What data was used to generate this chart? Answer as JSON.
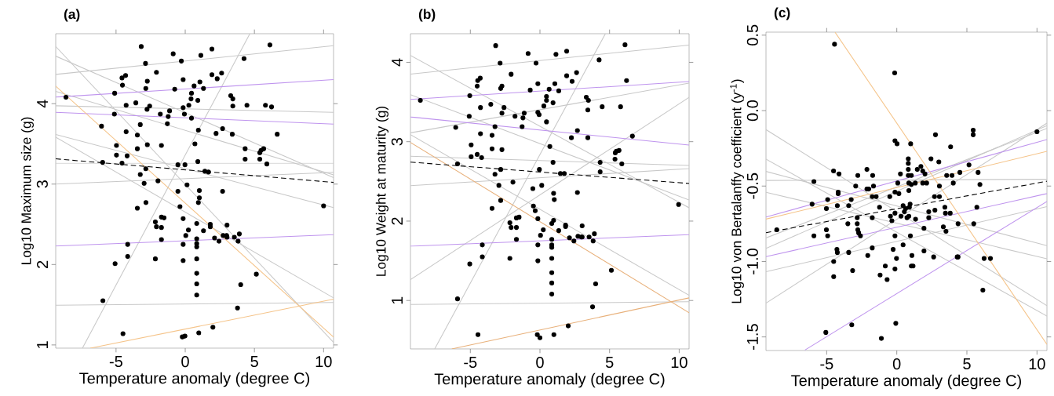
{
  "chart_data": [
    {
      "type": "scatter",
      "title": "(a)",
      "xlabel": "Temperature anomaly (degree C)",
      "ylabel": "Log10 Maximum size (g)",
      "xlim": [
        -9.36,
        10.72
      ],
      "ylim": [
        0.96,
        4.87
      ],
      "xticks": [
        -5,
        0,
        5,
        10
      ],
      "yticks": [
        1,
        2,
        3,
        4
      ],
      "grid": false,
      "series": [
        {
          "color": "#000000",
          "marker": "circle",
          "x": [
            -8.62,
            -6.05,
            -5.97,
            -5.95,
            -5.1,
            -5.12,
            -4.97,
            -4.97,
            -5.07,
            -4.57,
            -4.54,
            -4.31,
            -4.27,
            -4.27,
            -4.2,
            -4.57,
            -4.16,
            -4.16,
            -4.5,
            -3.57,
            -3.46,
            -3.46,
            -3.46,
            -3.18,
            -3.25,
            -3.25,
            -2.97,
            -2.87,
            -2.85,
            -2.74,
            -2.76,
            -2.57,
            -2.74,
            -2.85,
            -2.84,
            -2.08,
            -2.16,
            -2.08,
            -2.16,
            -1.97,
            -1.8,
            -1.72,
            -1.72,
            -1.72,
            -1.72,
            -1.53,
            -1.23,
            -1.13,
            -1.29,
            -0.87,
            -0.76,
            -0.53,
            -0.53,
            -0.38,
            -0.28,
            -0.15,
            -0.15,
            -0.15,
            -0.15,
            -0.15,
            -0.21,
            -0.06,
            -0.02,
            0.04,
            -0.02,
            0.13,
            0.23,
            0.26,
            0.42,
            0.45,
            0.45,
            0.64,
            0.7,
            0.83,
            0.83,
            0.83,
            0.83,
            0.83,
            0.83,
            0.83,
            0.83,
            0.91,
            0.91,
            0.95,
            0.95,
            1.02,
            1.02,
            1.06,
            0.98,
            1.13,
            1.32,
            1.32,
            1.42,
            1.68,
            1.81,
            1.81,
            1.93,
            1.93,
            2.0,
            2.12,
            2.23,
            2.31,
            2.44,
            2.63,
            2.7,
            2.7,
            2.74,
            2.99,
            3.02,
            3.02,
            3.29,
            3.44,
            3.44,
            3.4,
            3.55,
            3.78,
            3.82,
            3.91,
            4.01,
            4.25,
            4.33,
            4.33,
            4.46,
            5.14,
            5.39,
            5.39,
            5.48,
            5.67,
            5.8,
            5.9,
            6.12,
            6.24,
            6.65,
            10.0
          ],
          "values": [
            4.08,
            3.72,
            3.27,
            1.55,
            4.13,
            3.87,
            3.48,
            3.36,
            2.01,
            4.32,
            4.23,
            4.35,
            3.98,
            3.65,
            3.35,
            3.26,
            2.25,
            2.1,
            1.14,
            4.01,
            3.61,
            3.44,
            2.7,
            4.71,
            3.74,
            3.12,
            3.01,
            4.5,
            4.19,
            4.28,
            3.93,
            3.97,
            3.49,
            3.19,
            2.77,
            4.39,
            2.53,
            2.47,
            2.07,
            3.04,
            3.87,
            3.48,
            2.59,
            2.46,
            2.31,
            2.58,
            3.84,
            3.91,
            3.75,
            4.62,
            4.18,
            3.24,
            2.91,
            2.72,
            4.53,
            4.3,
            3.95,
            2.57,
            2.25,
            2.05,
            1.1,
            3.87,
            3.24,
            2.36,
            1.11,
            2.99,
            2.43,
            3.98,
            4.06,
            4.13,
            3.82,
            4.22,
            3.5,
            2.51,
            2.32,
            2.26,
            2.22,
            2.07,
            1.89,
            1.76,
            1.62,
            4.04,
            3.28,
            3.67,
            2.77,
            2.92,
            2.83,
            4.27,
            1.15,
            4.6,
            4.19,
            2.42,
            3.16,
            3.15,
            2.5,
            2.47,
            4.68,
            4.36,
            1.22,
            2.33,
            3.63,
            4.31,
            2.29,
            4.38,
            3.69,
            2.91,
            2.36,
            2.36,
            2.49,
            2.34,
            4.1,
            4.06,
            3.97,
            3.62,
            2.34,
            1.46,
            2.29,
            2.38,
            1.75,
            4.56,
            3.44,
            3.31,
            3.98,
            1.88,
            3.31,
            3.39,
            3.42,
            3.44,
            3.98,
            3.25,
            4.73,
            3.96,
            3.62,
            2.73
          ]
        },
        {
          "type": "line",
          "color": "#c8c8c8",
          "x": [
            -9.36,
            10.72
          ],
          "values": [
            4.364,
            4.721
          ]
        },
        {
          "type": "line",
          "color": "#c8c8c8",
          "x": [
            -9.36,
            10.72
          ],
          "values": [
            3.974,
            3.893
          ]
        },
        {
          "type": "line",
          "color": "#c8c8c8",
          "x": [
            -7.43,
            4.67
          ],
          "values": [
            0.96,
            4.87
          ]
        },
        {
          "type": "line",
          "color": "#c8c8c8",
          "x": [
            -9.36,
            10.72
          ],
          "values": [
            4.711,
            1.032
          ]
        },
        {
          "type": "line",
          "color": "#c8c8c8",
          "x": [
            -9.36,
            10.72
          ],
          "values": [
            4.591,
            3.081
          ]
        },
        {
          "type": "line",
          "color": "#c8c8c8",
          "x": [
            -9.36,
            10.72
          ],
          "values": [
            4.153,
            3.114
          ]
        },
        {
          "type": "line",
          "color": "#c8c8c8",
          "x": [
            -9.36,
            10.72
          ],
          "values": [
            3.617,
            2.707
          ]
        },
        {
          "type": "line",
          "color": "#c8c8c8",
          "x": [
            -9.36,
            10.72
          ],
          "values": [
            3.584,
            1.585
          ]
        },
        {
          "type": "line",
          "color": "#c8c8c8",
          "x": [
            -9.36,
            10.72
          ],
          "values": [
            1.494,
            1.527
          ]
        },
        {
          "type": "line",
          "color": "#c8c8c8",
          "x": [
            -9.36,
            10.72
          ],
          "values": [
            3.0,
            3.146
          ]
        },
        {
          "type": "line",
          "color": "#c8c8c8",
          "x": [
            -9.36,
            10.72
          ],
          "values": [
            3.259,
            3.259
          ]
        },
        {
          "type": "line",
          "color": "#bf94ee",
          "x": [
            -9.36,
            10.72
          ],
          "values": [
            4.081,
            4.299
          ]
        },
        {
          "type": "line",
          "color": "#bf94ee",
          "x": [
            -9.36,
            10.72
          ],
          "values": [
            3.893,
            3.747
          ]
        },
        {
          "type": "line",
          "color": "#bf94ee",
          "x": [
            -9.36,
            10.72
          ],
          "values": [
            2.229,
            2.372
          ]
        },
        {
          "type": "line",
          "color": "#f5c48a",
          "x": [
            -9.36,
            10.72
          ],
          "values": [
            4.218,
            1.098
          ]
        },
        {
          "type": "line",
          "color": "#f5c48a",
          "x": [
            -6.86,
            10.72
          ],
          "values": [
            0.96,
            1.569
          ]
        },
        {
          "type": "line",
          "color": "#000000",
          "line_style": "dashed",
          "x": [
            -9.36,
            10.72
          ],
          "values": [
            3.314,
            3.021
          ]
        }
      ]
    },
    {
      "type": "scatter",
      "title": "(b)",
      "xlabel": "Temperature anomaly (degree C)",
      "ylabel": "Log10 Weight at maturity (g)",
      "xlim": [
        -9.3,
        10.71
      ],
      "ylim": [
        0.39,
        4.36
      ],
      "xticks": [
        -5,
        0,
        5,
        10
      ],
      "yticks": [
        1,
        2,
        3,
        4
      ],
      "grid": false,
      "series": [
        {
          "color": "#000000",
          "marker": "circle",
          "x": [
            -8.59,
            -6.05,
            -5.92,
            -5.92,
            -5.04,
            -5.08,
            -4.94,
            -4.94,
            -5.04,
            -4.51,
            -4.47,
            -4.29,
            -4.27,
            -4.27,
            -4.19,
            -4.51,
            -4.14,
            -4.14,
            -4.45,
            -3.53,
            -3.44,
            -3.44,
            -3.44,
            -3.18,
            -3.23,
            -3.23,
            -2.95,
            -2.86,
            -2.82,
            -2.73,
            -2.73,
            -2.58,
            -2.73,
            -2.82,
            -2.82,
            -2.07,
            -2.16,
            -2.07,
            -2.16,
            -1.94,
            -1.79,
            -1.69,
            -1.69,
            -1.69,
            -1.5,
            -1.22,
            -1.13,
            -1.28,
            -0.85,
            -0.7,
            -0.51,
            -0.47,
            -0.34,
            -0.28,
            -0.15,
            -0.15,
            -0.15,
            -0.15,
            -0.15,
            -0.19,
            -0.06,
            -0.04,
            0.04,
            0.0,
            0.13,
            0.24,
            0.28,
            0.47,
            0.47,
            0.47,
            0.66,
            0.71,
            0.85,
            0.85,
            0.85,
            0.85,
            0.85,
            0.85,
            0.85,
            0.85,
            0.94,
            0.94,
            0.98,
            0.98,
            1.03,
            1.07,
            1.0,
            1.15,
            1.35,
            1.35,
            1.47,
            1.75,
            1.84,
            1.84,
            1.92,
            1.92,
            2.03,
            2.12,
            2.26,
            2.31,
            2.44,
            2.63,
            2.69,
            2.69,
            2.73,
            2.97,
            3.03,
            3.03,
            3.33,
            3.48,
            3.44,
            3.44,
            3.53,
            3.78,
            3.82,
            3.91,
            4.0,
            4.25,
            4.32,
            4.32,
            4.47,
            5.13,
            5.39,
            5.41,
            5.49,
            5.68,
            5.79,
            5.88,
            6.11,
            6.22,
            6.64,
            9.96
          ],
          "values": [
            3.52,
            3.18,
            2.72,
            1.02,
            3.58,
            3.32,
            2.96,
            2.81,
            1.46,
            3.7,
            3.77,
            3.8,
            3.43,
            3.1,
            2.8,
            2.84,
            1.7,
            1.55,
            0.57,
            3.47,
            3.08,
            2.91,
            2.16,
            4.21,
            3.19,
            2.59,
            2.45,
            3.99,
            3.67,
            3.7,
            3.36,
            3.43,
            2.9,
            2.65,
            2.26,
            3.85,
            1.98,
            1.92,
            1.53,
            2.49,
            3.32,
            2.04,
            1.92,
            1.77,
            2.05,
            3.3,
            3.36,
            3.19,
            4.11,
            3.65,
            2.41,
            2.19,
            2.13,
            3.99,
            3.73,
            3.37,
            2.03,
            1.7,
            1.5,
            0.57,
            3.34,
            2.65,
            1.82,
            0.53,
            2.45,
            1.89,
            3.45,
            3.52,
            3.57,
            3.25,
            3.66,
            2.94,
            1.97,
            1.77,
            1.7,
            1.67,
            1.53,
            1.35,
            1.22,
            1.08,
            3.49,
            2.74,
            2.01,
            2.35,
            2.27,
            3.73,
            0.57,
            4.1,
            3.64,
            1.88,
            2.6,
            2.6,
            1.95,
            1.93,
            4.14,
            3.83,
            0.68,
            1.79,
            3.05,
            3.76,
            1.75,
            3.87,
            3.14,
            2.36,
            1.81,
            1.8,
            1.94,
            1.8,
            3.56,
            3.52,
            3.4,
            3.05,
            1.8,
            0.92,
            1.75,
            1.84,
            1.21,
            4.03,
            2.74,
            2.62,
            3.44,
            1.38,
            2.78,
            2.86,
            2.88,
            2.89,
            3.44,
            2.72,
            4.22,
            3.77,
            3.07,
            2.21
          ]
        },
        {
          "type": "line",
          "color": "#c8c8c8",
          "x": [
            -9.3,
            10.71
          ],
          "values": [
            3.852,
            4.217
          ]
        },
        {
          "type": "line",
          "color": "#c8c8c8",
          "x": [
            -9.3,
            10.71
          ],
          "values": [
            4.086,
            2.168
          ]
        },
        {
          "type": "line",
          "color": "#c8c8c8",
          "x": [
            -9.3,
            10.71
          ],
          "values": [
            3.592,
            2.266
          ]
        },
        {
          "type": "line",
          "color": "#c8c8c8",
          "x": [
            -9.3,
            10.71
          ],
          "values": [
            3.112,
            3.737
          ]
        },
        {
          "type": "line",
          "color": "#c8c8c8",
          "x": [
            -9.3,
            10.71
          ],
          "values": [
            3.089,
            1.066
          ]
        },
        {
          "type": "line",
          "color": "#c8c8c8",
          "x": [
            -9.3,
            10.71
          ],
          "values": [
            2.816,
            2.701
          ]
        },
        {
          "type": "line",
          "color": "#c8c8c8",
          "x": [
            -9.3,
            10.71
          ],
          "values": [
            2.447,
            2.661
          ]
        },
        {
          "type": "line",
          "color": "#c8c8c8",
          "x": [
            -7.56,
            4.7
          ],
          "values": [
            0.39,
            4.36
          ]
        },
        {
          "type": "line",
          "color": "#c8c8c8",
          "x": [
            -9.3,
            10.71
          ],
          "values": [
            1.263,
            3.559
          ]
        },
        {
          "type": "line",
          "color": "#c8c8c8",
          "x": [
            -9.3,
            10.71
          ],
          "values": [
            0.951,
            0.984
          ]
        },
        {
          "type": "line",
          "color": "#bf94ee",
          "x": [
            -9.3,
            10.71
          ],
          "values": [
            3.533,
            3.757
          ]
        },
        {
          "type": "line",
          "color": "#bf94ee",
          "x": [
            -9.3,
            10.71
          ],
          "values": [
            3.312,
            2.957
          ]
        },
        {
          "type": "line",
          "color": "#bf94ee",
          "x": [
            -9.3,
            10.71
          ],
          "values": [
            1.684,
            1.829
          ]
        },
        {
          "type": "line",
          "color": "#e8b07a",
          "x": [
            -9.3,
            10.71
          ],
          "values": [
            2.99,
            0.845
          ]
        },
        {
          "type": "line",
          "color": "#e8b07a",
          "x": [
            -6.33,
            10.71
          ],
          "values": [
            0.39,
            1.033
          ]
        },
        {
          "type": "line",
          "color": "#000000",
          "line_style": "dashed",
          "x": [
            -9.3,
            10.71
          ],
          "values": [
            2.743,
            2.474
          ]
        }
      ]
    },
    {
      "type": "scatter",
      "title": "(c)",
      "xlabel": "Temperature anomaly (degree C)",
      "ylabel": "Log10 von Bertalanffy coefficient  (y$^{-1}$)",
      "xlim": [
        -9.33,
        10.71
      ],
      "ylim": [
        -1.59,
        0.52
      ],
      "xticks": [
        -5,
        0,
        5,
        10
      ],
      "yticks": [
        {
          "value": -1.5,
          "label": "-1.5"
        },
        {
          "value": -1,
          "label": "-1.0"
        },
        {
          "value": -0.5,
          "label": "-0.5"
        },
        {
          "value": 0,
          "label": "0.0"
        },
        {
          "value": 0.5,
          "label": "0.5"
        }
      ],
      "grid": false,
      "series": [
        {
          "color": "#000000",
          "marker": "circle",
          "x": [
            -8.56,
            -6.04,
            -5.91,
            -5.91,
            -5.06,
            -5.02,
            -5.02,
            -4.93,
            -4.93,
            -4.51,
            -4.44,
            -4.5,
            -4.5,
            -4.27,
            -4.24,
            -4.24,
            -4.18,
            -4.18,
            -4.12,
            -3.49,
            -3.43,
            -3.43,
            -3.25,
            -3.21,
            -3.15,
            -2.93,
            -2.82,
            -2.82,
            -2.78,
            -2.78,
            -2.72,
            -2.59,
            -2.13,
            -2.07,
            -2.13,
            -2.0,
            -1.75,
            -1.72,
            -1.66,
            -1.75,
            -1.75,
            -1.47,
            -1.23,
            -1.19,
            -1.1,
            -0.82,
            -0.69,
            -0.5,
            -0.45,
            -0.35,
            -0.26,
            -0.13,
            -0.13,
            -0.13,
            -0.13,
            -0.13,
            -0.07,
            -0.15,
            0.02,
            -0.02,
            0.07,
            0.15,
            0.26,
            0.3,
            0.45,
            0.45,
            0.54,
            0.63,
            0.73,
            0.82,
            0.82,
            0.82,
            0.82,
            0.86,
            0.86,
            0.9,
            0.95,
            0.97,
            0.86,
            0.99,
            1.04,
            1.04,
            1.04,
            1.08,
            1.16,
            1.32,
            1.34,
            1.46,
            1.72,
            1.85,
            1.85,
            1.94,
            1.94,
            2.01,
            2.13,
            2.28,
            2.28,
            2.44,
            2.63,
            2.69,
            2.72,
            2.76,
            3.0,
            3.04,
            3.04,
            3.32,
            3.43,
            3.47,
            3.51,
            3.56,
            3.81,
            3.84,
            3.94,
            4.03,
            4.31,
            4.37,
            4.37,
            4.5,
            5.15,
            5.45,
            5.45,
            5.49,
            5.71,
            5.8,
            5.93,
            6.14,
            6.23,
            6.68,
            10.0
          ],
          "values": [
            -0.79,
            -0.62,
            -0.47,
            -0.83,
            -1.47,
            -0.65,
            -0.79,
            -0.59,
            -0.83,
            -0.4,
            0.44,
            -1.0,
            -1.1,
            -0.92,
            -0.94,
            -0.63,
            -0.55,
            -0.54,
            -0.42,
            -0.75,
            -0.94,
            -0.63,
            -0.59,
            -1.42,
            -1.06,
            -0.5,
            -0.71,
            -0.75,
            -0.79,
            -0.43,
            -0.81,
            -0.83,
            -0.39,
            -0.96,
            -0.52,
            -0.52,
            -0.71,
            -0.43,
            -0.5,
            -0.57,
            -0.91,
            -0.57,
            -0.64,
            -1.09,
            -1.51,
            -1.03,
            -1.12,
            -0.57,
            -0.7,
            -0.73,
            -0.92,
            -0.2,
            -0.54,
            -0.68,
            -0.83,
            -1.05,
            -1.41,
            0.25,
            -0.22,
            -0.98,
            -0.48,
            -0.55,
            -0.42,
            -0.7,
            -0.89,
            -0.63,
            -0.67,
            -0.65,
            -0.71,
            -0.32,
            -0.35,
            -0.39,
            -0.43,
            -0.53,
            -0.48,
            -0.64,
            -0.62,
            -0.83,
            -0.7,
            -0.22,
            -0.43,
            -0.49,
            -1.03,
            -0.96,
            -1.03,
            -0.48,
            -0.72,
            -0.39,
            -0.37,
            -0.48,
            -0.4,
            -0.78,
            -0.93,
            -0.42,
            -0.48,
            -0.67,
            -0.71,
            -0.32,
            -0.97,
            -0.57,
            -0.66,
            -0.16,
            -0.34,
            -0.5,
            -0.57,
            -0.77,
            -0.64,
            -0.68,
            -0.8,
            -0.43,
            -0.68,
            -0.24,
            -0.43,
            -0.48,
            -0.97,
            -0.97,
            -0.75,
            -0.41,
            -0.36,
            -0.13,
            -0.16,
            -0.75,
            -0.64,
            -0.41,
            -0.49,
            -1.19,
            -0.98,
            -0.98,
            -0.14
          ]
        },
        {
          "type": "line",
          "color": "#c8c8c8",
          "x": [
            -9.33,
            10.71
          ],
          "values": [
            -0.463,
            -0.455
          ]
        },
        {
          "type": "line",
          "color": "#c8c8c8",
          "x": [
            -9.33,
            10.71
          ],
          "values": [
            -0.126,
            -1.293
          ]
        },
        {
          "type": "line",
          "color": "#c8c8c8",
          "x": [
            -9.33,
            10.71
          ],
          "values": [
            -0.322,
            -1.362
          ]
        },
        {
          "type": "line",
          "color": "#c8c8c8",
          "x": [
            -9.33,
            10.71
          ],
          "values": [
            -0.403,
            -0.895
          ]
        },
        {
          "type": "line",
          "color": "#c8c8c8",
          "x": [
            -9.33,
            10.71
          ],
          "values": [
            -0.541,
            -0.982
          ]
        },
        {
          "type": "line",
          "color": "#c8c8c8",
          "x": [
            -9.33,
            10.71
          ],
          "values": [
            -1.276,
            -0.083
          ]
        },
        {
          "type": "line",
          "color": "#c8c8c8",
          "x": [
            -9.33,
            10.71
          ],
          "values": [
            -0.913,
            -0.1
          ]
        },
        {
          "type": "line",
          "color": "#c8c8c8",
          "x": [
            -9.33,
            10.71
          ],
          "values": [
            -0.844,
            -0.118
          ]
        },
        {
          "type": "line",
          "color": "#c8c8c8",
          "x": [
            -9.33,
            10.71
          ],
          "values": [
            -1.068,
            -0.636
          ]
        },
        {
          "type": "line",
          "color": "#bf94ee",
          "x": [
            -9.33,
            10.71
          ],
          "values": [
            -0.705,
            -0.192
          ]
        },
        {
          "type": "line",
          "color": "#bf94ee",
          "x": [
            -9.33,
            10.71
          ],
          "values": [
            -0.968,
            -0.55
          ]
        },
        {
          "type": "line",
          "color": "#bf94ee",
          "x": [
            -6.55,
            10.71
          ],
          "values": [
            -1.587,
            -0.602
          ]
        },
        {
          "type": "line",
          "color": "#f5c48a",
          "x": [
            -4.4,
            10.71
          ],
          "values": [
            0.519,
            -1.549
          ]
        },
        {
          "type": "line",
          "color": "#f5c48a",
          "x": [
            -9.33,
            10.71
          ],
          "values": [
            -0.719,
            -0.27
          ]
        },
        {
          "type": "line",
          "color": "#000000",
          "line_style": "dashed",
          "x": [
            -9.33,
            10.71
          ],
          "values": [
            -0.809,
            -0.468
          ]
        }
      ]
    }
  ]
}
